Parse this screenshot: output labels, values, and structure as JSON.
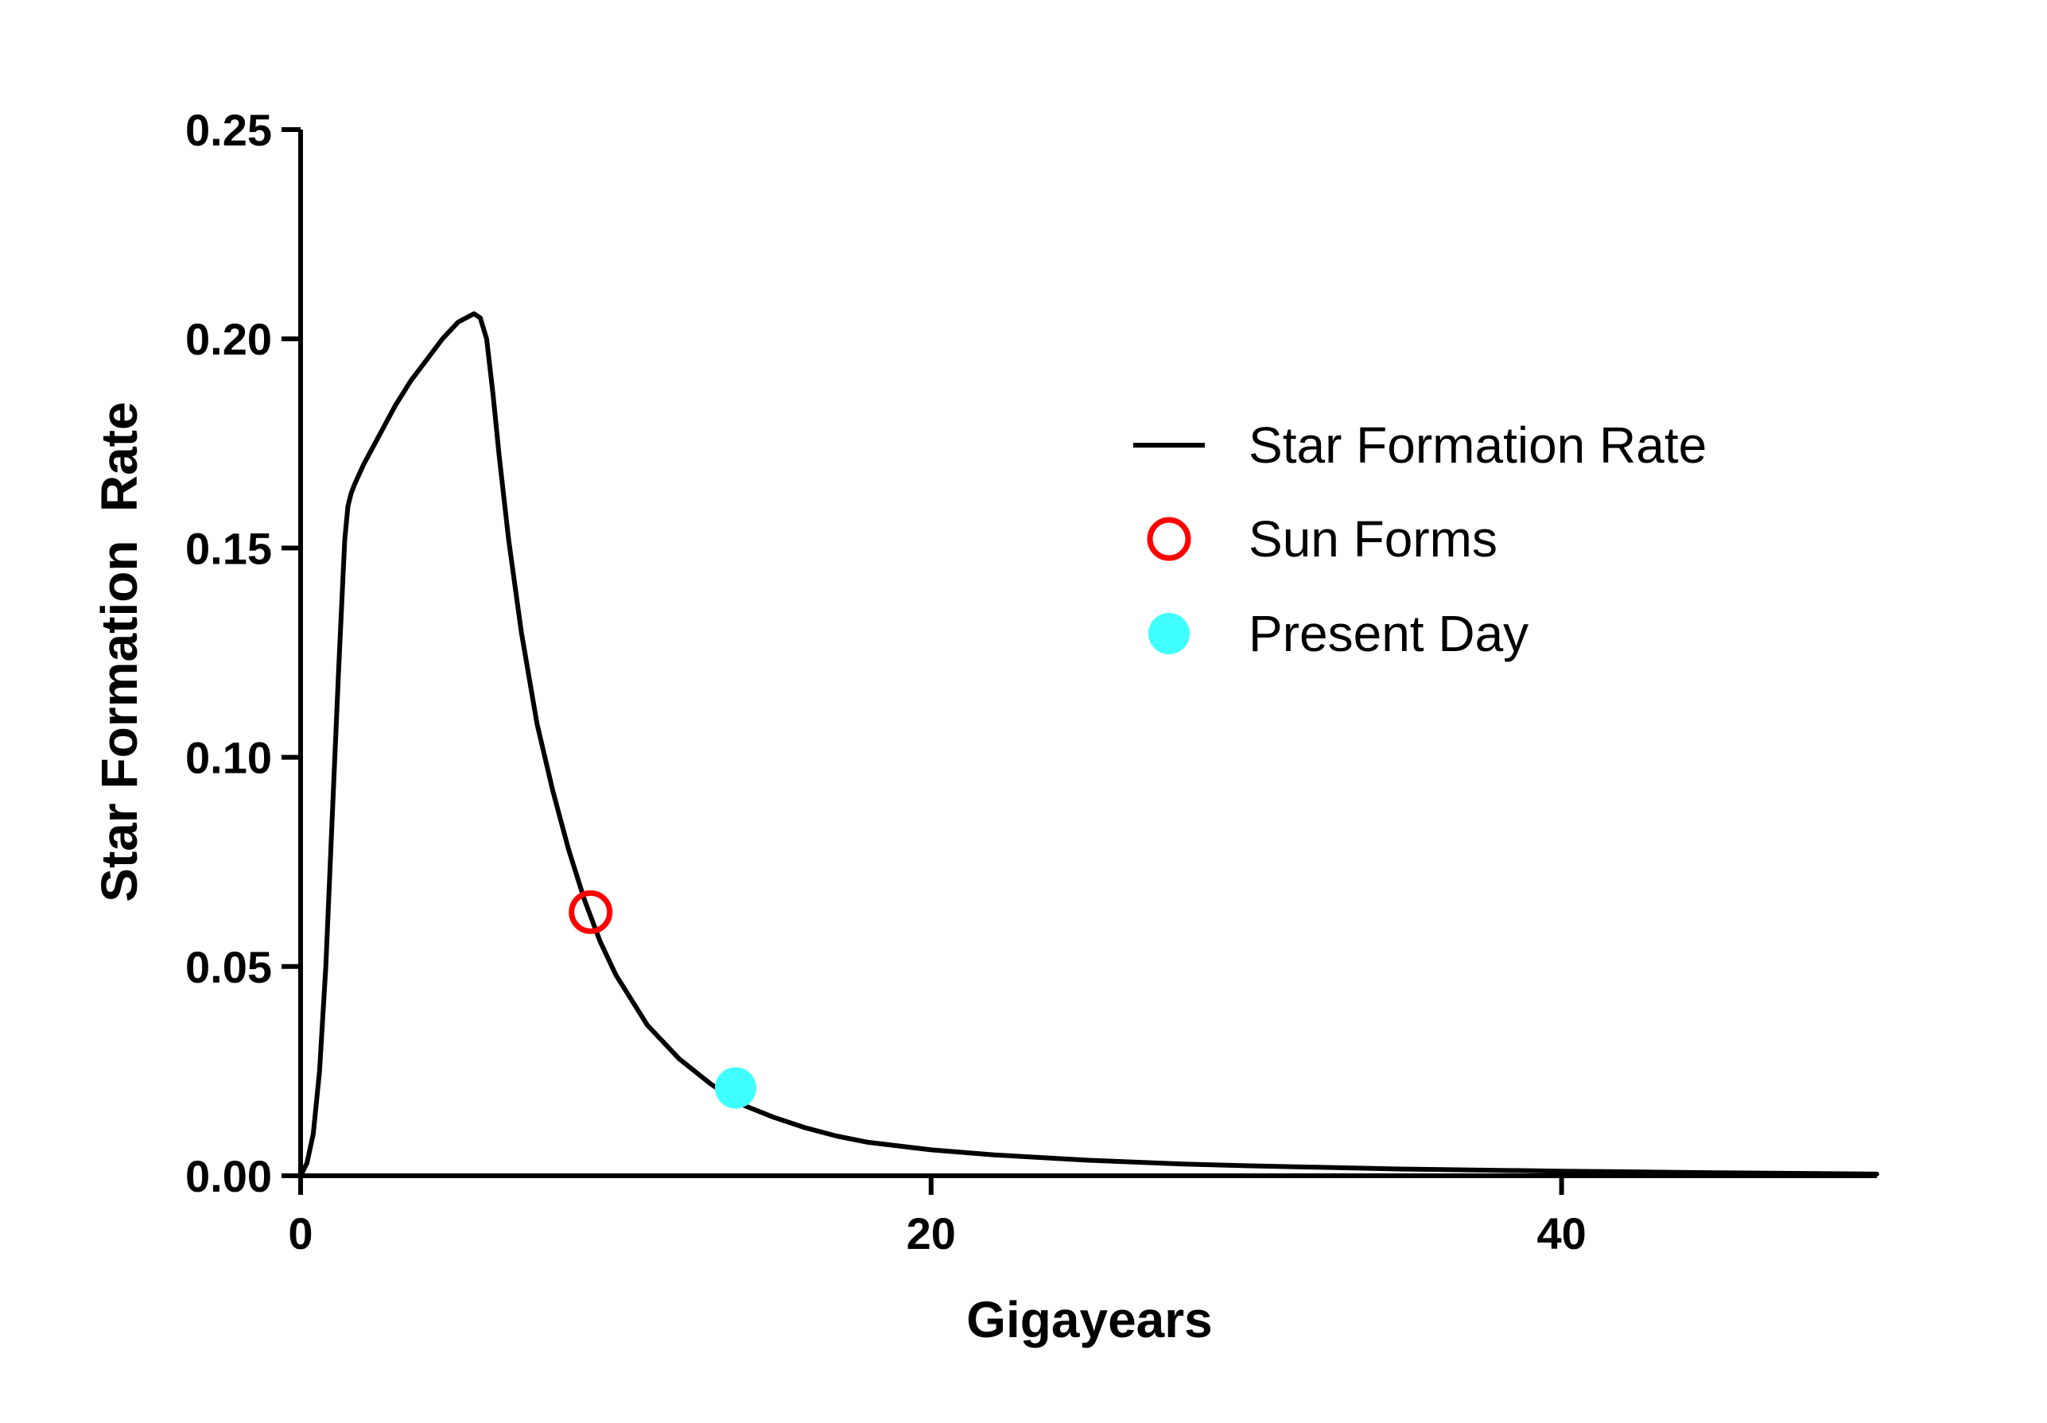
{
  "chart_data": {
    "type": "line",
    "title": "",
    "xlabel": "Gigayears",
    "ylabel": "Star Formation  Rate",
    "xlim": [
      0,
      50
    ],
    "ylim": [
      0,
      0.25
    ],
    "xticks": [
      0,
      20,
      40
    ],
    "xtick_labels": [
      "0",
      "20",
      "40"
    ],
    "yticks": [
      0,
      0.05,
      0.1,
      0.15,
      0.2,
      0.25
    ],
    "ytick_labels": [
      "0.00",
      "0.05",
      "0.10",
      "0.15",
      "0.20",
      "0.25"
    ],
    "grid": false,
    "legend_position": "right",
    "series": [
      {
        "name": "Star Formation Rate",
        "kind": "line",
        "color": "#000000",
        "x": [
          0,
          0.2,
          0.4,
          0.6,
          0.8,
          1.0,
          1.2,
          1.4,
          1.5,
          1.6,
          1.7,
          2.0,
          2.5,
          3.0,
          3.5,
          4.0,
          4.5,
          5.0,
          5.5,
          5.7,
          5.9,
          6.1,
          6.3,
          6.6,
          7.0,
          7.5,
          8.0,
          8.5,
          9.0,
          9.5,
          10.0,
          11.0,
          12.0,
          13.0,
          14.0,
          15.0,
          16.0,
          17.0,
          18.0,
          20.0,
          22.0,
          25.0,
          28.0,
          30.0,
          35.0,
          40.0,
          45.0,
          50.0
        ],
        "y": [
          0.0,
          0.003,
          0.01,
          0.025,
          0.05,
          0.085,
          0.12,
          0.152,
          0.16,
          0.163,
          0.165,
          0.17,
          0.177,
          0.184,
          0.19,
          0.195,
          0.2,
          0.204,
          0.206,
          0.205,
          0.2,
          0.187,
          0.172,
          0.152,
          0.13,
          0.108,
          0.092,
          0.078,
          0.066,
          0.056,
          0.048,
          0.036,
          0.028,
          0.022,
          0.017,
          0.014,
          0.0115,
          0.0095,
          0.008,
          0.0062,
          0.005,
          0.0037,
          0.0028,
          0.0024,
          0.0016,
          0.0011,
          0.0007,
          0.0004
        ]
      },
      {
        "name": "Sun Forms",
        "kind": "marker-open-circle",
        "color": "#ff0000",
        "x": [
          9.2
        ],
        "y": [
          0.063
        ]
      },
      {
        "name": "Present Day",
        "kind": "marker-filled-circle",
        "color": "#40ffff",
        "x": [
          13.8
        ],
        "y": [
          0.021
        ]
      }
    ]
  }
}
